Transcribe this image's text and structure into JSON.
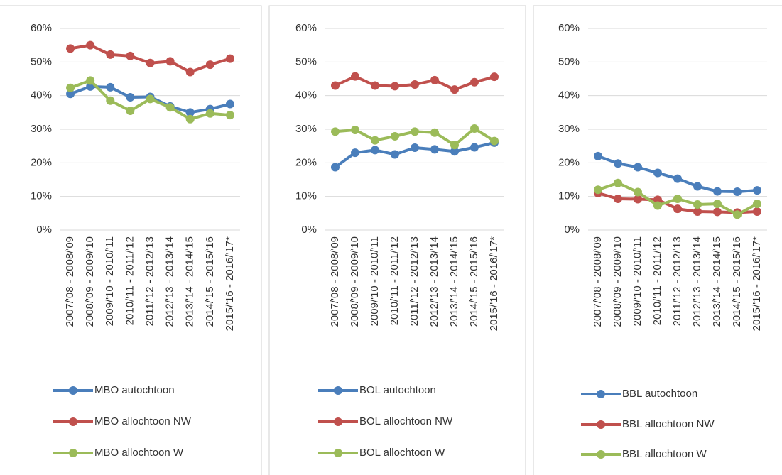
{
  "chart_data": [
    {
      "type": "line",
      "categories": [
        "2007/'08 - 2008/'09",
        "2008/'09 - 2009/'10",
        "2009/'10 - 2010/'11",
        "2010/'11 - 2011/'12",
        "2011/'12 - 2012/'13",
        "2012/'13 - 2013/'14",
        "2013/'14 - 2014/'15",
        "2014/'15 - 2015/'16",
        "2015/'16 - 2016/'17*"
      ],
      "series": [
        {
          "name": "MBO autochtoon",
          "color": "#4a7ebb",
          "values": [
            40.5,
            42.7,
            42.5,
            39.5,
            39.6,
            36.8,
            35,
            36,
            37.5
          ]
        },
        {
          "name": "MBO allochtoon NW",
          "color": "#c0504d",
          "values": [
            54,
            55,
            52.2,
            51.8,
            49.7,
            50.2,
            47,
            49.2,
            51
          ]
        },
        {
          "name": "MBO allochtoon W",
          "color": "#9bbb59",
          "values": [
            42.3,
            44.5,
            38.5,
            35.5,
            39,
            36.5,
            33,
            34.7,
            34.2
          ]
        }
      ],
      "ylim": [
        0,
        60
      ],
      "yticks": [
        {
          "value": 0,
          "label": "0%"
        },
        {
          "value": 10,
          "label": "10%"
        },
        {
          "value": 20,
          "label": "20%"
        },
        {
          "value": 30,
          "label": "30%"
        },
        {
          "value": 40,
          "label": "40%"
        },
        {
          "value": 50,
          "label": "50%"
        },
        {
          "value": 60,
          "label": "60%"
        }
      ],
      "grid": true,
      "legend": "bottom"
    },
    {
      "type": "line",
      "categories": [
        "2007/'08 - 2008/'09",
        "2008/'09 - 2009/'10",
        "2009/'10 - 2010/'11",
        "2010/'11 - 2011/'12",
        "2011/'12 - 2012/'13",
        "2012/'13 - 2013/'14",
        "2013/'14 - 2014/'15",
        "2014/'15 - 2015/'16",
        "2015/'16 - 2016/'17*"
      ],
      "series": [
        {
          "name": "BOL autochtoon",
          "color": "#4a7ebb",
          "values": [
            18.7,
            23,
            23.8,
            22.5,
            24.5,
            24,
            23.4,
            24.6,
            26
          ]
        },
        {
          "name": "BOL allochtoon NW",
          "color": "#c0504d",
          "values": [
            43,
            45.7,
            43,
            42.8,
            43.3,
            44.6,
            41.8,
            44,
            45.6
          ]
        },
        {
          "name": "BOL allochtoon W",
          "color": "#9bbb59",
          "values": [
            29.3,
            29.8,
            26.7,
            27.9,
            29.3,
            29,
            25.3,
            30.2,
            26.5
          ]
        }
      ],
      "ylim": [
        0,
        60
      ],
      "yticks": [
        {
          "value": 0,
          "label": "0%"
        },
        {
          "value": 10,
          "label": "10%"
        },
        {
          "value": 20,
          "label": "20%"
        },
        {
          "value": 30,
          "label": "30%"
        },
        {
          "value": 40,
          "label": "40%"
        },
        {
          "value": 50,
          "label": "50%"
        },
        {
          "value": 60,
          "label": "60%"
        }
      ],
      "grid": true,
      "legend": "bottom"
    },
    {
      "type": "line",
      "categories": [
        "2007/'08 - 2008/'09",
        "2008/'09 - 2009/'10",
        "2009/'10 - 2010/'11",
        "2010/'11 - 2011/'12",
        "2011/'12 - 2012/'13",
        "2012/'13 - 2013/'14",
        "2013/'14 - 2014/'15",
        "2014/'15 - 2015/'16",
        "2015/'16 - 2016/'17*"
      ],
      "series": [
        {
          "name": "BBL autochtoon",
          "color": "#4a7ebb",
          "values": [
            22,
            19.8,
            18.7,
            17,
            15.3,
            13,
            11.5,
            11.4,
            11.8
          ]
        },
        {
          "name": "BBL allochtoon NW",
          "color": "#c0504d",
          "values": [
            11,
            9.3,
            9.2,
            9,
            6.3,
            5.5,
            5.4,
            5.2,
            5.5
          ]
        },
        {
          "name": "BBL allochtoon W",
          "color": "#9bbb59",
          "values": [
            12,
            14,
            11.3,
            7.3,
            9.3,
            7.6,
            7.8,
            4.6,
            7.8
          ]
        }
      ],
      "ylim": [
        0,
        60
      ],
      "yticks": [
        {
          "value": 0,
          "label": "0%"
        },
        {
          "value": 10,
          "label": "10%"
        },
        {
          "value": 20,
          "label": "20%"
        },
        {
          "value": 30,
          "label": "30%"
        },
        {
          "value": 40,
          "label": "40%"
        },
        {
          "value": 50,
          "label": "50%"
        },
        {
          "value": 60,
          "label": "60%"
        }
      ],
      "grid": true,
      "legend": "bottom"
    }
  ]
}
